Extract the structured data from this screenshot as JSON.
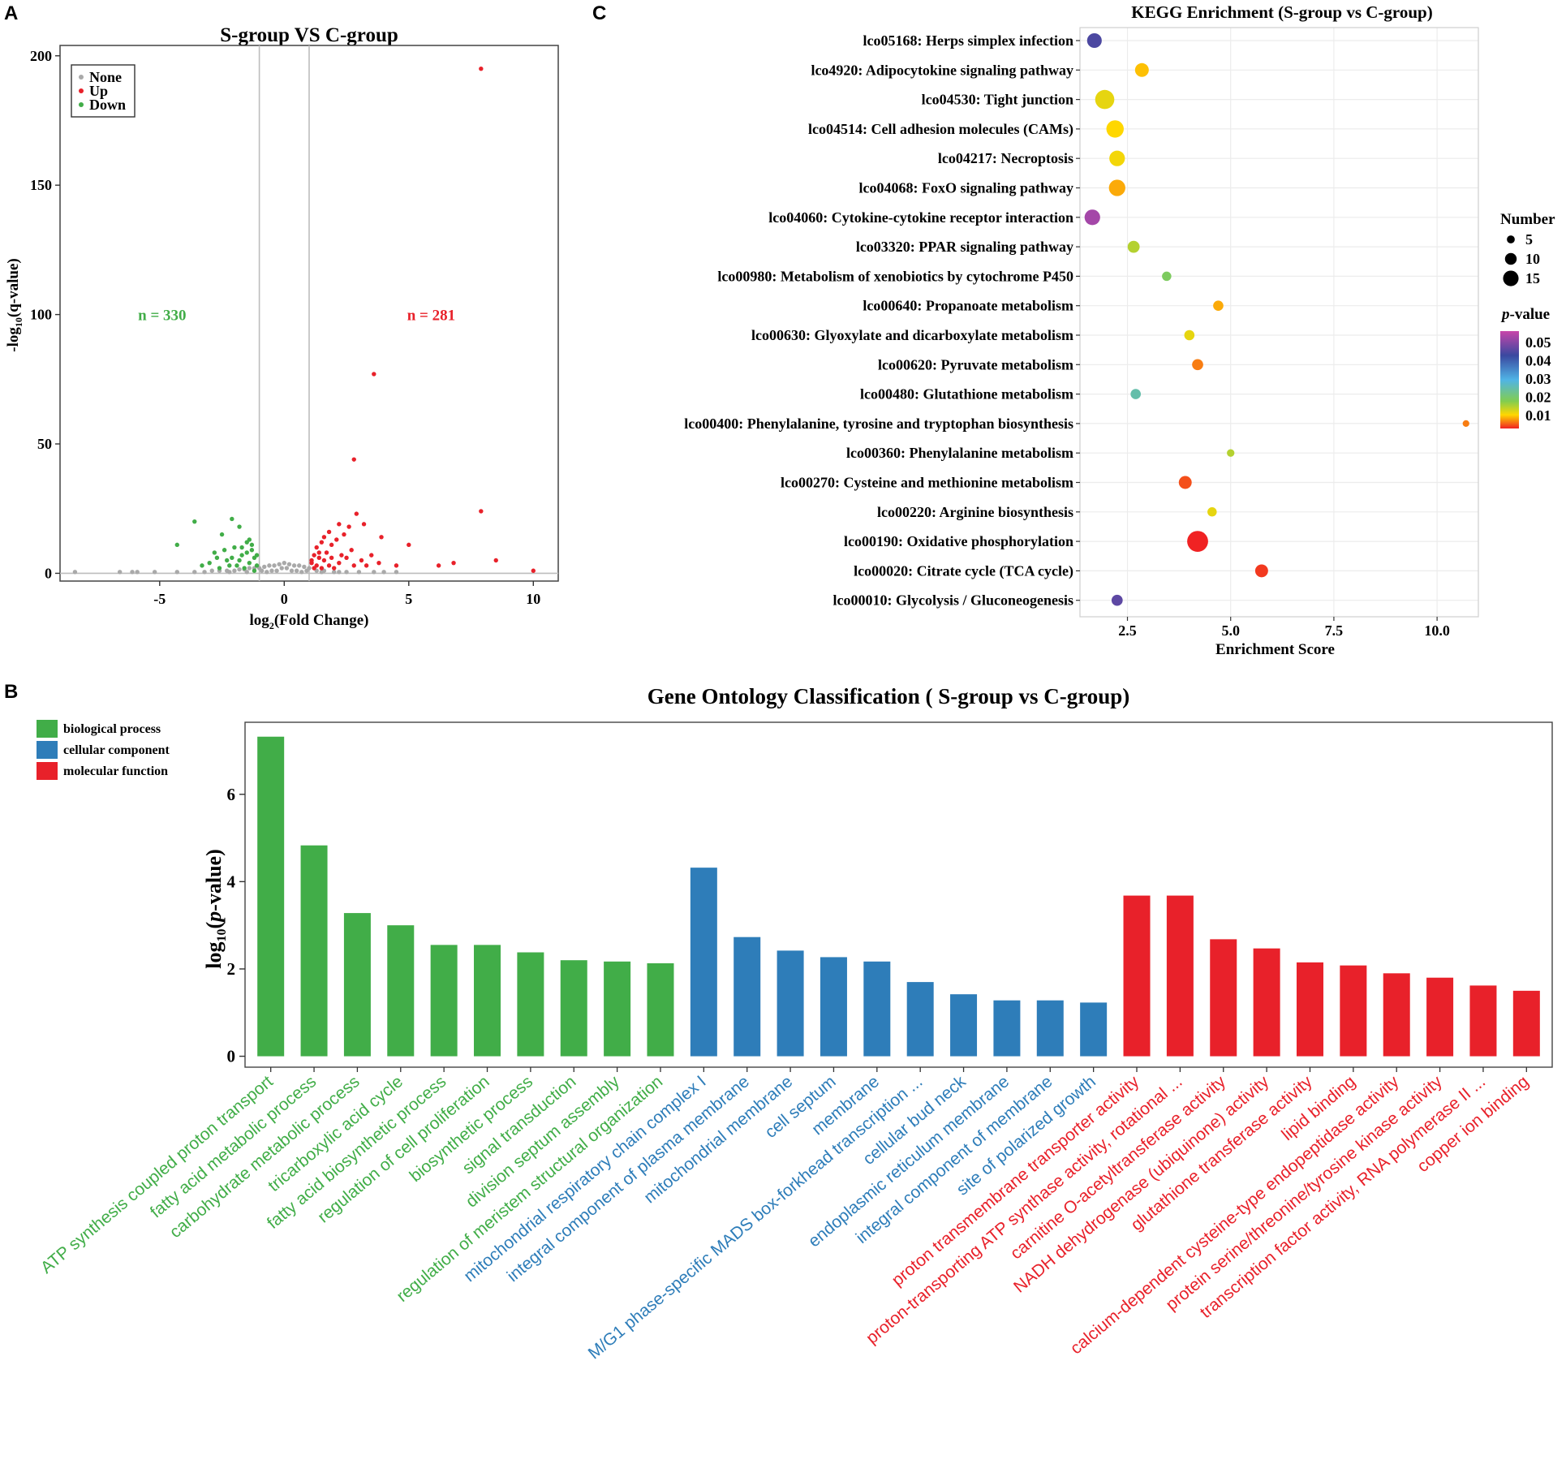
{
  "chart_data": [
    {
      "panel": "A",
      "type": "scatter",
      "title": "S-group VS C-group",
      "xlabel_parts": [
        "log",
        "2",
        "(Fold Change)"
      ],
      "ylabel_parts": [
        "-log",
        "10",
        "(q-value)"
      ],
      "xticks": [
        -5,
        0,
        5,
        10
      ],
      "yticks": [
        0,
        50,
        100,
        150,
        200
      ],
      "xlim": [
        -9,
        11
      ],
      "ylim": [
        -3,
        204
      ],
      "thresholds_x": [
        -1,
        1
      ],
      "legend": [
        {
          "label": "None",
          "color": "#a9a9a9"
        },
        {
          "label": "Up",
          "color": "#e8212a"
        },
        {
          "label": "Down",
          "color": "#41ad48"
        }
      ],
      "annotations": [
        {
          "text": "n = 330",
          "color": "#41ad48",
          "x": -4.9,
          "y": 100
        },
        {
          "text": "n = 281",
          "color": "#e8212a",
          "x": 5.9,
          "y": 100
        }
      ],
      "series": [
        {
          "name": "Up",
          "color": "#e8212a",
          "points": [
            [
              7.9,
              195
            ],
            [
              3.6,
              77
            ],
            [
              2.8,
              44
            ],
            [
              7.9,
              24
            ],
            [
              3.9,
              14
            ],
            [
              5,
              11
            ],
            [
              2.9,
              23
            ],
            [
              2.2,
              19
            ],
            [
              2.6,
              18
            ],
            [
              3.2,
              19
            ],
            [
              1.8,
              16
            ],
            [
              2.4,
              15
            ],
            [
              1.6,
              14
            ],
            [
              2.1,
              13
            ],
            [
              1.5,
              12
            ],
            [
              1.9,
              11
            ],
            [
              1.3,
              10
            ],
            [
              2.7,
              9
            ],
            [
              1.7,
              8
            ],
            [
              1.2,
              7
            ],
            [
              1.4,
              6
            ],
            [
              1.6,
              5
            ],
            [
              1.1,
              4
            ],
            [
              1.3,
              3
            ],
            [
              1.8,
              3
            ],
            [
              2.2,
              4
            ],
            [
              2.5,
              6
            ],
            [
              3.1,
              5
            ],
            [
              3.5,
              7
            ],
            [
              3.8,
              4
            ],
            [
              4.5,
              3
            ],
            [
              6.2,
              3
            ],
            [
              6.8,
              4
            ],
            [
              8.5,
              5
            ],
            [
              10,
              1
            ],
            [
              1.2,
              2
            ],
            [
              1.5,
              2
            ],
            [
              2,
              2
            ],
            [
              1.1,
              5
            ],
            [
              1.4,
              8
            ],
            [
              1.9,
              6
            ],
            [
              2.3,
              7
            ],
            [
              2.8,
              3
            ],
            [
              3.3,
              3
            ]
          ]
        },
        {
          "name": "Down",
          "color": "#41ad48",
          "points": [
            [
              -3.6,
              20
            ],
            [
              -2.1,
              21
            ],
            [
              -4.3,
              11
            ],
            [
              -1.8,
              18
            ],
            [
              -2.5,
              15
            ],
            [
              -1.5,
              12
            ],
            [
              -2,
              10
            ],
            [
              -1.3,
              9
            ],
            [
              -2.8,
              8
            ],
            [
              -1.7,
              7
            ],
            [
              -1.2,
              6
            ],
            [
              -2.3,
              5
            ],
            [
              -1.4,
              4
            ],
            [
              -1.9,
              3
            ],
            [
              -1.1,
              3
            ],
            [
              -3,
              4
            ],
            [
              -2.6,
              2
            ],
            [
              -1.6,
              2
            ],
            [
              -1.2,
              1
            ],
            [
              -2.1,
              6
            ],
            [
              -1.5,
              8
            ],
            [
              -1.8,
              5
            ],
            [
              -2.4,
              9
            ],
            [
              -1.3,
              11
            ],
            [
              -1.1,
              7
            ],
            [
              -2.7,
              6
            ],
            [
              -3.3,
              3
            ],
            [
              -2.2,
              3
            ],
            [
              -1.7,
              10
            ],
            [
              -1.4,
              13
            ]
          ]
        },
        {
          "name": "None",
          "color": "#a9a9a9",
          "points": [
            [
              -8.4,
              0.5
            ],
            [
              -6.6,
              0.5
            ],
            [
              -6.1,
              0.5
            ],
            [
              -5.9,
              0.5
            ],
            [
              -5.2,
              0.5
            ],
            [
              -4.3,
              0.5
            ],
            [
              -3.6,
              0.5
            ],
            [
              -3.2,
              0.5
            ],
            [
              -2.9,
              1
            ],
            [
              -2.6,
              1
            ],
            [
              -2.3,
              1
            ],
            [
              -2,
              1
            ],
            [
              -1.8,
              1.5
            ],
            [
              -1.6,
              1.5
            ],
            [
              -1.4,
              2
            ],
            [
              -1.2,
              2
            ],
            [
              -1,
              2
            ],
            [
              -0.8,
              2.5
            ],
            [
              -0.6,
              3
            ],
            [
              -0.4,
              3
            ],
            [
              -0.2,
              3.5
            ],
            [
              0,
              4
            ],
            [
              0.2,
              3.5
            ],
            [
              0.4,
              3
            ],
            [
              0.6,
              3
            ],
            [
              0.8,
              2.5
            ],
            [
              1,
              2
            ],
            [
              1.3,
              1
            ],
            [
              1.6,
              1
            ],
            [
              2,
              0.5
            ],
            [
              2.5,
              0.5
            ],
            [
              3,
              0.5
            ],
            [
              3.6,
              0.5
            ],
            [
              4,
              0.5
            ],
            [
              4.5,
              0.5
            ],
            [
              -0.9,
              1
            ],
            [
              -0.5,
              1
            ],
            [
              -0.3,
              1
            ],
            [
              0.3,
              1
            ],
            [
              0.5,
              1
            ],
            [
              0.9,
              1
            ],
            [
              -0.7,
              0.5
            ],
            [
              0.7,
              0.5
            ],
            [
              -0.1,
              2
            ],
            [
              0.1,
              2
            ],
            [
              -1.5,
              0.5
            ],
            [
              1.5,
              0.5
            ],
            [
              -2.2,
              0.5
            ],
            [
              2.2,
              0.5
            ]
          ]
        }
      ]
    },
    {
      "panel": "C",
      "type": "scatter",
      "title": "KEGG Enrichment (S-group vs C-group)",
      "xlabel": "Enrichment Score",
      "xticks": [
        2.5,
        5.0,
        7.5,
        10.0
      ],
      "xtick_labels": [
        "2.5",
        "5.0",
        "7.5",
        "10.0"
      ],
      "xlim": [
        1.35,
        11.0
      ],
      "size_legend_title": "Number",
      "size_legend": [
        5,
        10,
        15
      ],
      "color_legend_title_parts": [
        "p",
        "-value"
      ],
      "color_legend_ticks": [
        "0.05",
        "0.04",
        "0.03",
        "0.02",
        "0.01"
      ],
      "color_range": [
        0.002,
        0.058
      ],
      "terms": [
        {
          "label": "lco05168: Herps simplex infection",
          "x": 1.7,
          "number": 11,
          "p": 0.044
        },
        {
          "label": "lco4920: Adipocytokine signaling pathway",
          "x": 2.85,
          "number": 10,
          "p": 0.009
        },
        {
          "label": "lco04530: Tight junction",
          "x": 1.95,
          "number": 16,
          "p": 0.012
        },
        {
          "label": "lco04514: Cell adhesion molecules (CAMs)",
          "x": 2.2,
          "number": 14,
          "p": 0.01
        },
        {
          "label": "lco04217: Necroptosis",
          "x": 2.25,
          "number": 12,
          "p": 0.011
        },
        {
          "label": "lco04068: FoxO signaling pathway",
          "x": 2.25,
          "number": 13,
          "p": 0.008
        },
        {
          "label": "lco04060: Cytokine-cytokine receptor interaction",
          "x": 1.65,
          "number": 12,
          "p": 0.054
        },
        {
          "label": "lco03320: PPAR signaling pathway",
          "x": 2.65,
          "number": 8,
          "p": 0.016
        },
        {
          "label": "lco00980: Metabolism of xenobiotics by cytochrome P450",
          "x": 3.45,
          "number": 5,
          "p": 0.021
        },
        {
          "label": "lco00640: Propanoate metabolism",
          "x": 4.7,
          "number": 6,
          "p": 0.008
        },
        {
          "label": "lco00630: Glyoxylate and dicarboxylate metabolism",
          "x": 4.0,
          "number": 6,
          "p": 0.012
        },
        {
          "label": "lco00620: Pyruvate metabolism",
          "x": 4.2,
          "number": 7,
          "p": 0.006
        },
        {
          "label": "lco00480: Glutathione metabolism",
          "x": 2.7,
          "number": 6,
          "p": 0.026
        },
        {
          "label": "lco00400: Phenylalanine, tyrosine and tryptophan biosynthesis",
          "x": 10.7,
          "number": 2,
          "p": 0.006
        },
        {
          "label": "lco00360: Phenylalanine metabolism",
          "x": 5.0,
          "number": 3,
          "p": 0.016
        },
        {
          "label": "lco00270: Cysteine and methionine metabolism",
          "x": 3.9,
          "number": 9,
          "p": 0.004
        },
        {
          "label": "lco00220: Arginine biosynthesis",
          "x": 4.55,
          "number": 5,
          "p": 0.012
        },
        {
          "label": "lco00190: Oxidative phosphorylation",
          "x": 4.2,
          "number": 18,
          "p": 0.002
        },
        {
          "label": "lco00020: Citrate cycle (TCA cycle)",
          "x": 5.75,
          "number": 9,
          "p": 0.003
        },
        {
          "label": "lco00010: Glycolysis / Gluconeogenesis",
          "x": 2.25,
          "number": 7,
          "p": 0.046
        }
      ]
    },
    {
      "panel": "B",
      "type": "bar",
      "title": "Gene Ontology Classification ( S-group vs C-group)",
      "ylabel_parts": [
        "log",
        "10",
        "(",
        "p",
        "-value)"
      ],
      "yticks": [
        0,
        2,
        4,
        6
      ],
      "ylim": [
        -0.25,
        7.65
      ],
      "legend": [
        {
          "label": "biological process",
          "color": "#41ad48"
        },
        {
          "label": "cellular component",
          "color": "#2e7db9"
        },
        {
          "label": "molecular function",
          "color": "#e8212a"
        }
      ],
      "bars": [
        {
          "label": "ATP synthesis coupled proton transport",
          "value": 7.32,
          "group": 0
        },
        {
          "label": "fatty acid metabolic process",
          "value": 4.83,
          "group": 0
        },
        {
          "label": "carbohydrate metabolic process",
          "value": 3.28,
          "group": 0
        },
        {
          "label": "tricarboxylic acid cycle",
          "value": 3.0,
          "group": 0
        },
        {
          "label": "fatty acid biosynthetic process",
          "value": 2.55,
          "group": 0
        },
        {
          "label": "regulation of cell proliferation",
          "value": 2.55,
          "group": 0
        },
        {
          "label": "biosynthetic process",
          "value": 2.38,
          "group": 0
        },
        {
          "label": "signal transduction",
          "value": 2.2,
          "group": 0
        },
        {
          "label": "division septum assembly",
          "value": 2.17,
          "group": 0
        },
        {
          "label": "regulation of meristem structural organization",
          "value": 2.13,
          "group": 0
        },
        {
          "label": "mitochondrial respiratory chain complex I",
          "value": 4.32,
          "group": 1
        },
        {
          "label": "integral component of plasma membrane",
          "value": 2.73,
          "group": 1
        },
        {
          "label": "mitochondrial membrane",
          "value": 2.42,
          "group": 1
        },
        {
          "label": "cell septum",
          "value": 2.27,
          "group": 1
        },
        {
          "label": "membrane",
          "value": 2.17,
          "group": 1
        },
        {
          "label": "M/G1 phase-specific MADS box-forkhead transcription ...",
          "value": 1.7,
          "group": 1
        },
        {
          "label": "cellular bud neck",
          "value": 1.42,
          "group": 1
        },
        {
          "label": "endoplasmic reticulum membrane",
          "value": 1.28,
          "group": 1
        },
        {
          "label": "integral component of membrane",
          "value": 1.28,
          "group": 1
        },
        {
          "label": "site of polarized growth",
          "value": 1.23,
          "group": 1
        },
        {
          "label": "proton transmembrane transporter activity",
          "value": 3.68,
          "group": 2
        },
        {
          "label": "proton-transporting ATP synthase activity, rotational ...",
          "value": 3.68,
          "group": 2
        },
        {
          "label": "carnitine O-acetyltransferase activity",
          "value": 2.68,
          "group": 2
        },
        {
          "label": "NADH dehydrogenase (ubiquinone) activity",
          "value": 2.47,
          "group": 2
        },
        {
          "label": "glutathione transferase activity",
          "value": 2.15,
          "group": 2
        },
        {
          "label": "lipid binding",
          "value": 2.08,
          "group": 2
        },
        {
          "label": "calcium-dependent cysteine-type endopeptidase activity",
          "value": 1.9,
          "group": 2
        },
        {
          "label": "protein serine/threonine/tyrosine kinase activity",
          "value": 1.8,
          "group": 2
        },
        {
          "label": "transcription factor activity, RNA polymerase II ...",
          "value": 1.62,
          "group": 2
        },
        {
          "label": "copper ion binding",
          "value": 1.5,
          "group": 2
        }
      ]
    }
  ],
  "panel_letters": [
    "A",
    "B",
    "C"
  ]
}
